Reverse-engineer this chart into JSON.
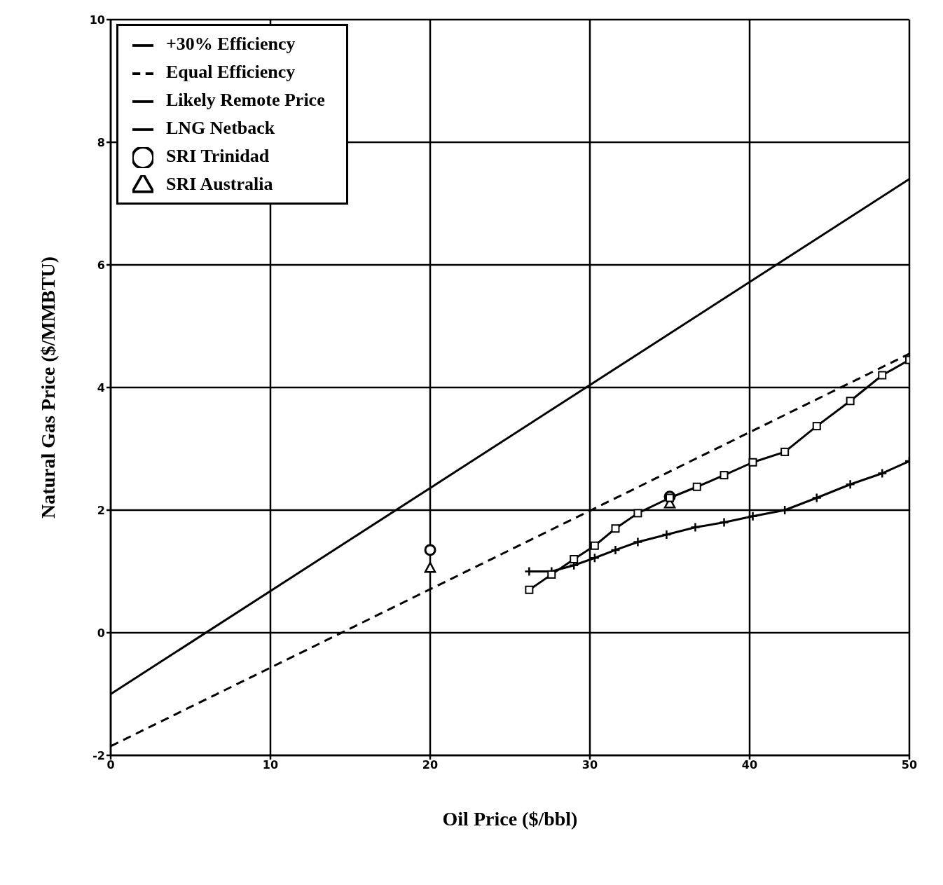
{
  "chart_data": {
    "type": "line",
    "xlabel": "Oil Price ($/bbl)",
    "ylabel": "Natural Gas Price ($/MMBTU)",
    "xlim": [
      0,
      50
    ],
    "xticks": [
      0,
      10,
      20,
      30,
      40,
      50
    ],
    "ylim": [
      -2,
      10
    ],
    "yticks": [
      -2,
      0,
      2,
      4,
      6,
      8,
      10
    ],
    "grid": true,
    "legend": "top left",
    "series": [
      {
        "name": "+30% Efficiency",
        "color": "#000000",
        "type": "line",
        "marker": "none",
        "line_style": "solid",
        "x": [
          0,
          50
        ],
        "values": [
          -1,
          7.4
        ]
      },
      {
        "name": "Equal Efficiency",
        "color": "#000000",
        "type": "line",
        "marker": "none",
        "line_style": "dashed",
        "x": [
          0,
          50
        ],
        "values": [
          -1.85,
          4.55
        ]
      },
      {
        "name": "Likely Remote Price",
        "color": "#000000",
        "type": "line",
        "marker": "cross",
        "line_style": "solid",
        "x": [
          26.2,
          27.6,
          29.0,
          30.3,
          31.6,
          33.0,
          34.8,
          36.6,
          38.4,
          40.2,
          42.2,
          44.2,
          46.3,
          48.3,
          50
        ],
        "values": [
          1.0,
          1.0,
          1.1,
          1.22,
          1.35,
          1.48,
          1.6,
          1.72,
          1.8,
          1.9,
          2.0,
          2.2,
          2.42,
          2.6,
          2.8
        ]
      },
      {
        "name": "LNG Netback",
        "color": "#000000",
        "type": "line",
        "marker": "square",
        "line_style": "solid",
        "x": [
          26.2,
          27.6,
          29.0,
          30.3,
          31.6,
          33.0,
          35.0,
          36.7,
          38.4,
          40.2,
          42.2,
          44.2,
          46.3,
          48.3,
          50
        ],
        "values": [
          0.7,
          0.95,
          1.2,
          1.42,
          1.7,
          1.95,
          2.2,
          2.38,
          2.57,
          2.78,
          2.95,
          3.37,
          3.78,
          4.2,
          4.45
        ]
      },
      {
        "name": "SRI Trinidad",
        "color": "#000000",
        "type": "scatter",
        "marker": "circle",
        "x": [
          20,
          35
        ],
        "values": [
          1.35,
          2.22
        ]
      },
      {
        "name": "SRI Australia",
        "color": "#000000",
        "type": "scatter",
        "marker": "triangle",
        "x": [
          20,
          35
        ],
        "values": [
          1.05,
          2.1
        ]
      }
    ]
  }
}
